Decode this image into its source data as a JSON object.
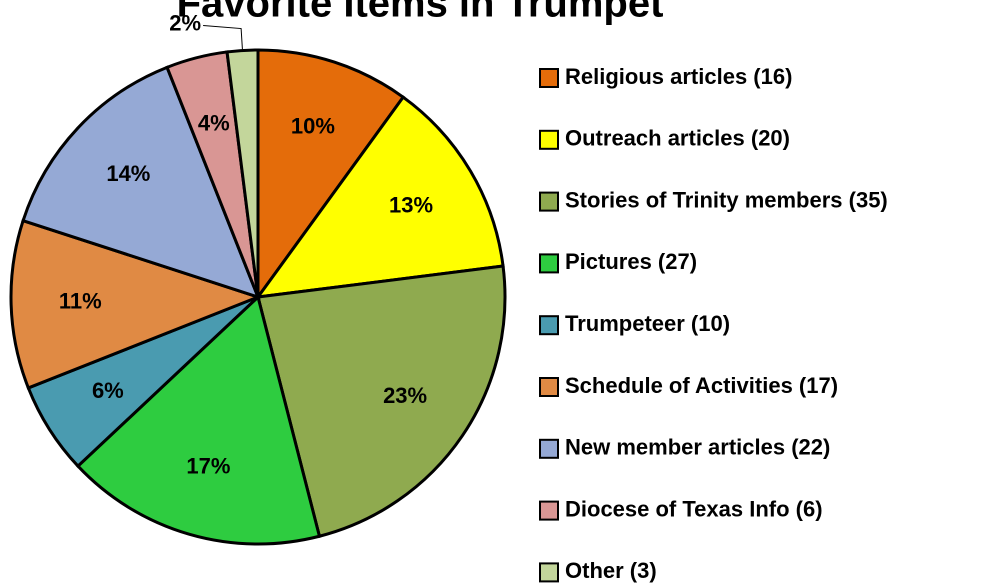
{
  "chart_data": {
    "type": "pie",
    "title": "Favorite Items in Trumpet",
    "categories": [
      "Religious articles (16)",
      "Outreach articles (20)",
      "Stories of Trinity members (35)",
      "Pictures (27)",
      "Trumpeteer (10)",
      "Schedule of Activities (17)",
      "New member articles (22)",
      "Diocese of Texas Info (6)",
      "Other (3)"
    ],
    "values": [
      10,
      13,
      23,
      17,
      6,
      11,
      14,
      4,
      2
    ],
    "value_labels": [
      "10%",
      "13%",
      "23%",
      "17%",
      "6%",
      "11%",
      "14%",
      "4%",
      "2%"
    ],
    "colors": [
      "#e46c0a",
      "#ffff00",
      "#8faa4f",
      "#2ecc40",
      "#4a9bb0",
      "#e08a44",
      "#95a9d5",
      "#d99694",
      "#c3d69b"
    ],
    "legend": "right"
  }
}
